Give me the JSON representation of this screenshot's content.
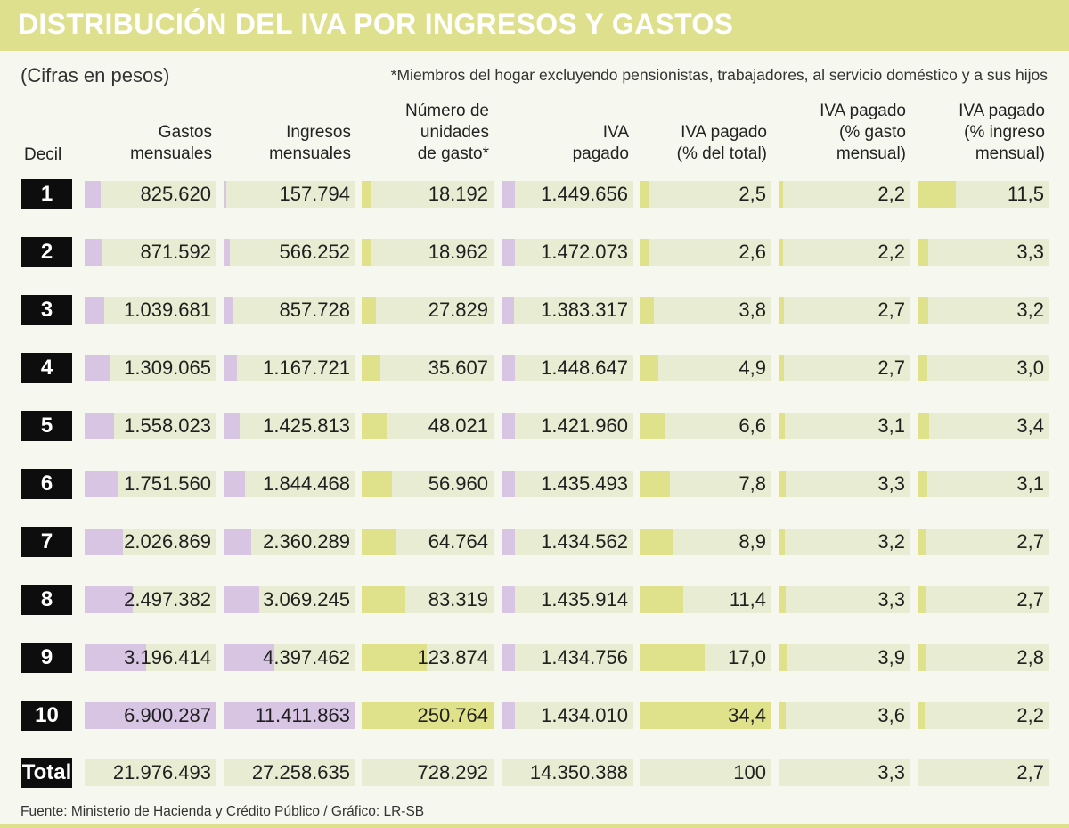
{
  "title": "DISTRIBUCIÓN DEL IVA POR INGRESOS Y GASTOS",
  "note_units": "(Cifras en pesos)",
  "note_members": "*Miembros del hogar excluyendo pensionistas, trabajadores, al servicio doméstico y a sus hijos",
  "source": "Fuente: Ministerio de Hacienda y Crédito Público / Gráfico: LR-SB",
  "colors": {
    "title_bar": "#dfe08e",
    "purple_bar": "#d7c5e3",
    "green_bar": "#dfe28a",
    "cell_bg": "#e8ecd2",
    "badge": "#0d0d0d"
  },
  "chart_data": {
    "type": "table",
    "title": "DISTRIBUCIÓN DEL IVA POR INGRESOS Y GASTOS",
    "row_header": "Decil",
    "columns": [
      {
        "key": "gastos",
        "label": "Gastos\nmensuales",
        "bar_color": "purple",
        "bar_max": 6900287
      },
      {
        "key": "ingresos",
        "label": "Ingresos\nmensuales",
        "bar_color": "purple",
        "bar_max": 11411863
      },
      {
        "key": "unidades",
        "label": "Número de\nunidades\nde gasto*",
        "bar_color": "green",
        "bar_max": 250764
      },
      {
        "key": "iva",
        "label": "IVA\npagado",
        "bar_color": "purple",
        "bar_max": 14499999
      },
      {
        "key": "pct_total",
        "label": "IVA pagado\n(% del total)",
        "bar_color": "green",
        "bar_max": 34.4
      },
      {
        "key": "pct_gasto",
        "label": "IVA pagado\n(% gasto\nmensual)",
        "bar_color": "green",
        "bar_max": 64
      },
      {
        "key": "pct_ingreso",
        "label": "IVA pagado\n(% ingreso\nmensual)",
        "bar_color": "green",
        "bar_max": 40
      }
    ],
    "rows": [
      {
        "decil": "1",
        "display": [
          "825.620",
          "157.794",
          "18.192",
          "1.449.656",
          "2,5",
          "2,2",
          "11,5"
        ],
        "values": [
          825620,
          157794,
          18192,
          1449656,
          2.5,
          2.2,
          11.5
        ]
      },
      {
        "decil": "2",
        "display": [
          "871.592",
          "566.252",
          "18.962",
          "1.472.073",
          "2,6",
          "2,2",
          "3,3"
        ],
        "values": [
          871592,
          566252,
          18962,
          1472073,
          2.6,
          2.2,
          3.3
        ]
      },
      {
        "decil": "3",
        "display": [
          "1.039.681",
          "857.728",
          "27.829",
          "1.383.317",
          "3,8",
          "2,7",
          "3,2"
        ],
        "values": [
          1039681,
          857728,
          27829,
          1383317,
          3.8,
          2.7,
          3.2
        ]
      },
      {
        "decil": "4",
        "display": [
          "1.309.065",
          "1.167.721",
          "35.607",
          "1.448.647",
          "4,9",
          "2,7",
          "3,0"
        ],
        "values": [
          1309065,
          1167721,
          35607,
          1448647,
          4.9,
          2.7,
          3.0
        ]
      },
      {
        "decil": "5",
        "display": [
          "1.558.023",
          "1.425.813",
          "48.021",
          "1.421.960",
          "6,6",
          "3,1",
          "3,4"
        ],
        "values": [
          1558023,
          1425813,
          48021,
          1421960,
          6.6,
          3.1,
          3.4
        ]
      },
      {
        "decil": "6",
        "display": [
          "1.751.560",
          "1.844.468",
          "56.960",
          "1.435.493",
          "7,8",
          "3,3",
          "3,1"
        ],
        "values": [
          1751560,
          1844468,
          56960,
          1435493,
          7.8,
          3.3,
          3.1
        ]
      },
      {
        "decil": "7",
        "display": [
          "2.026.869",
          "2.360.289",
          "64.764",
          "1.434.562",
          "8,9",
          "3,2",
          "2,7"
        ],
        "values": [
          2026869,
          2360289,
          64764,
          1434562,
          8.9,
          3.2,
          2.7
        ]
      },
      {
        "decil": "8",
        "display": [
          "2.497.382",
          "3.069.245",
          "83.319",
          "1.435.914",
          "11,4",
          "3,3",
          "2,7"
        ],
        "values": [
          2497382,
          3069245,
          83319,
          1435914,
          11.4,
          3.3,
          2.7
        ]
      },
      {
        "decil": "9",
        "display": [
          "3.196.414",
          "4.397.462",
          "123.874",
          "1.434.756",
          "17,0",
          "3,9",
          "2,8"
        ],
        "values": [
          3196414,
          4397462,
          123874,
          1434756,
          17.0,
          3.9,
          2.8
        ]
      },
      {
        "decil": "10",
        "display": [
          "6.900.287",
          "11.411.863",
          "250.764",
          "1.434.010",
          "34,4",
          "3,6",
          "2,2"
        ],
        "values": [
          6900287,
          11411863,
          250764,
          1434010,
          34.4,
          3.6,
          2.2
        ]
      }
    ],
    "total": {
      "label": "Total",
      "display": [
        "21.976.493",
        "27.258.635",
        "728.292",
        "14.350.388",
        "100",
        "3,3",
        "2,7"
      ]
    }
  }
}
